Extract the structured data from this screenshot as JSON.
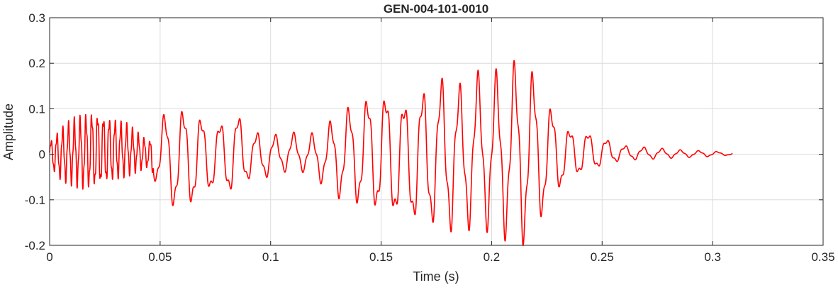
{
  "chart_data": {
    "type": "line",
    "title": "GEN-004-101-0010",
    "xlabel": "Time (s)",
    "ylabel": "Amplitude",
    "xlim": [
      0,
      0.35
    ],
    "ylim": [
      -0.2,
      0.3
    ],
    "grid": true,
    "xticks": [
      0,
      0.05,
      0.1,
      0.15,
      0.2,
      0.25,
      0.3,
      0.35
    ],
    "xtick_labels": [
      "0",
      "0.05",
      "0.1",
      "0.15",
      "0.2",
      "0.25",
      "0.3",
      "0.35"
    ],
    "yticks": [
      -0.2,
      -0.1,
      0,
      0.1,
      0.2,
      0.3
    ],
    "ytick_labels": [
      "-0.2",
      "-0.1",
      "0",
      "0.1",
      "0.2",
      "0.3"
    ],
    "series": [
      {
        "color": "#ff0000",
        "x": [
          0,
          0.005,
          0.01,
          0.015,
          0.02,
          0.025,
          0.03,
          0.035,
          0.04,
          0.045,
          0.05,
          0.055,
          0.06,
          0.065,
          0.07,
          0.075,
          0.08,
          0.085,
          0.09,
          0.095,
          0.1,
          0.105,
          0.11,
          0.115,
          0.12,
          0.125,
          0.13,
          0.135,
          0.14,
          0.145,
          0.15,
          0.155,
          0.16,
          0.165,
          0.17,
          0.175,
          0.18,
          0.185,
          0.19,
          0.195,
          0.2,
          0.205,
          0.21,
          0.215,
          0.22,
          0.225,
          0.23,
          0.235,
          0.24,
          0.245,
          0.25,
          0.255,
          0.26,
          0.265,
          0.27,
          0.275,
          0.28,
          0.285,
          0.29,
          0.295,
          0.3,
          0.305,
          0.309
        ],
        "y_max": [
          0.03,
          0.06,
          0.08,
          0.09,
          0.1,
          0.09,
          0.08,
          0.07,
          0.05,
          0.03,
          0.09,
          0.1,
          0.11,
          0.12,
          0.08,
          0.07,
          0.09,
          0.1,
          0.06,
          0.05,
          0.05,
          0.04,
          0.05,
          0.04,
          0.05,
          0.06,
          0.1,
          0.11,
          0.12,
          0.14,
          0.15,
          0.14,
          0.13,
          0.13,
          0.16,
          0.15,
          0.21,
          0.16,
          0.17,
          0.19,
          0.18,
          0.2,
          0.21,
          0.22,
          0.18,
          0.12,
          0.1,
          0.06,
          0.06,
          0.05,
          0.04,
          0.03,
          0.02,
          0.018,
          0.016,
          0.014,
          0.012,
          0.01,
          0.009,
          0.008,
          0.007,
          0.005,
          0.003
        ],
        "y_min": [
          -0.03,
          -0.06,
          -0.07,
          -0.08,
          -0.08,
          -0.07,
          -0.06,
          -0.05,
          -0.04,
          -0.03,
          -0.09,
          -0.12,
          -0.14,
          -0.12,
          -0.1,
          -0.08,
          -0.09,
          -0.1,
          -0.06,
          -0.06,
          -0.05,
          -0.04,
          -0.04,
          -0.04,
          -0.06,
          -0.07,
          -0.1,
          -0.11,
          -0.12,
          -0.13,
          -0.14,
          -0.15,
          -0.15,
          -0.16,
          -0.16,
          -0.17,
          -0.18,
          -0.18,
          -0.17,
          -0.16,
          -0.18,
          -0.19,
          -0.2,
          -0.21,
          -0.17,
          -0.13,
          -0.09,
          -0.06,
          -0.05,
          -0.04,
          -0.03,
          -0.02,
          -0.015,
          -0.013,
          -0.012,
          -0.01,
          -0.009,
          -0.008,
          -0.007,
          -0.006,
          -0.005,
          -0.003,
          -0.002
        ]
      }
    ]
  }
}
